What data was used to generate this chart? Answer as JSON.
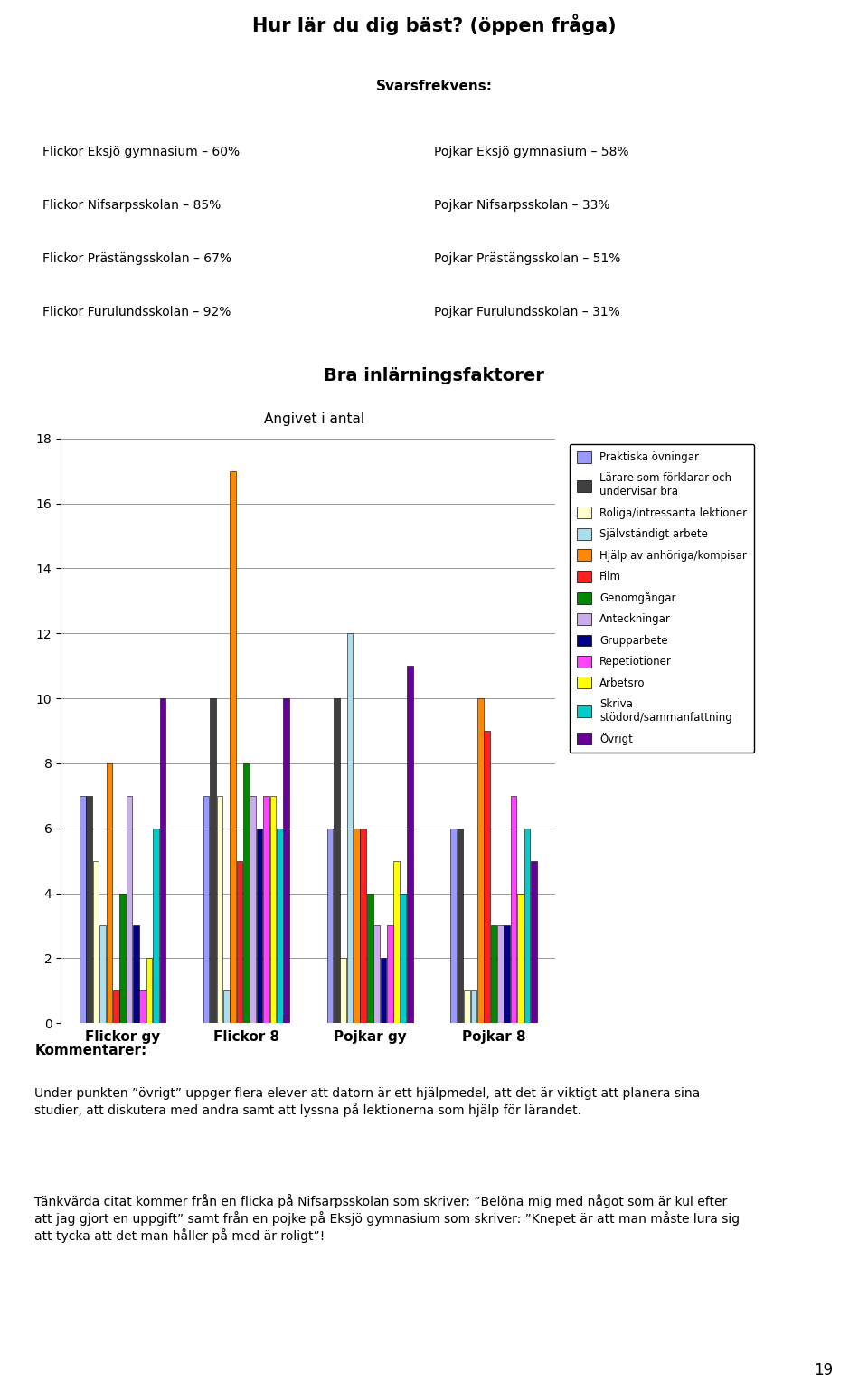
{
  "title": "Hur lär du dig bäst? (öppen fråga)",
  "subtitle": "Svarsfrekvens:",
  "left_column": [
    "Flickor Eksjö gymnasium – 60%",
    "Flickor Nifsarpsskolan – 85%",
    "Flickor Prästängsskolan – 67%",
    "Flickor Furulundsskolan – 92%"
  ],
  "right_column": [
    "Pojkar Eksjö gymnasium – 58%",
    "Pojkar Nifsarpsskolan – 33%",
    "Pojkar Prästängsskolan – 51%",
    "Pojkar Furulundsskolan – 31%"
  ],
  "chart_title": "Bra inlärningsfaktorer",
  "chart_subtitle": "Angivet i antal",
  "categories": [
    "Flickor gy",
    "Flickor 8",
    "Pojkar gy",
    "Pojkar 8"
  ],
  "series": [
    {
      "label": "Praktiska övningar",
      "color": "#9999FF",
      "values": [
        7,
        7,
        6,
        6
      ]
    },
    {
      "label": "Lärare som förklarar och\nundervisar bra",
      "color": "#404040",
      "values": [
        7,
        10,
        10,
        6
      ]
    },
    {
      "label": "Roliga/intressanta lektioner",
      "color": "#FFFFCC",
      "values": [
        5,
        7,
        2,
        1
      ]
    },
    {
      "label": "Självständigt arbete",
      "color": "#AADDEE",
      "values": [
        3,
        1,
        12,
        1
      ]
    },
    {
      "label": "Hjälp av anhöriga/kompisar",
      "color": "#FF8800",
      "values": [
        8,
        17,
        6,
        10
      ]
    },
    {
      "label": "Film",
      "color": "#FF2020",
      "values": [
        1,
        5,
        6,
        9
      ]
    },
    {
      "label": "Genomgångar",
      "color": "#008800",
      "values": [
        4,
        8,
        4,
        3
      ]
    },
    {
      "label": "Anteckningar",
      "color": "#CCAAEE",
      "values": [
        7,
        7,
        3,
        3
      ]
    },
    {
      "label": "Grupparbete",
      "color": "#000088",
      "values": [
        3,
        6,
        2,
        3
      ]
    },
    {
      "label": "Repetiotioner",
      "color": "#FF44FF",
      "values": [
        1,
        7,
        3,
        7
      ]
    },
    {
      "label": "Arbetsro",
      "color": "#FFFF00",
      "values": [
        2,
        7,
        5,
        4
      ]
    },
    {
      "label": "Skriva\nstödord/sammanfattning",
      "color": "#00CCCC",
      "values": [
        6,
        6,
        4,
        6
      ]
    },
    {
      "label": "Övrigt",
      "color": "#660099",
      "values": [
        10,
        10,
        11,
        5
      ]
    }
  ],
  "ylim": [
    0,
    18
  ],
  "yticks": [
    0,
    2,
    4,
    6,
    8,
    10,
    12,
    14,
    16,
    18
  ],
  "comment_title": "Kommentarer:",
  "comment_line1": "Under punkten ”övrigt” uppger flera elever att datorn är ett hjälpmedel, att det är viktigt att planera sina\nstudier, att diskutera med andra samt att lyssna på lektionerna som hjälp för lärandet.",
  "comment_line2": "Tänkvärda citat kommer från en flicka på Nifsarpsskolan som skriver: ”Belöna mig med något som är kul efter\natt jag gjort en uppgift” samt från en pojke på Eksjö gymnasium som skriver: ”Knepet är att man måste lura sig\natt tycka att det man håller på med är roligt”!",
  "page_number": "19",
  "fig_width": 9.6,
  "fig_height": 15.39
}
